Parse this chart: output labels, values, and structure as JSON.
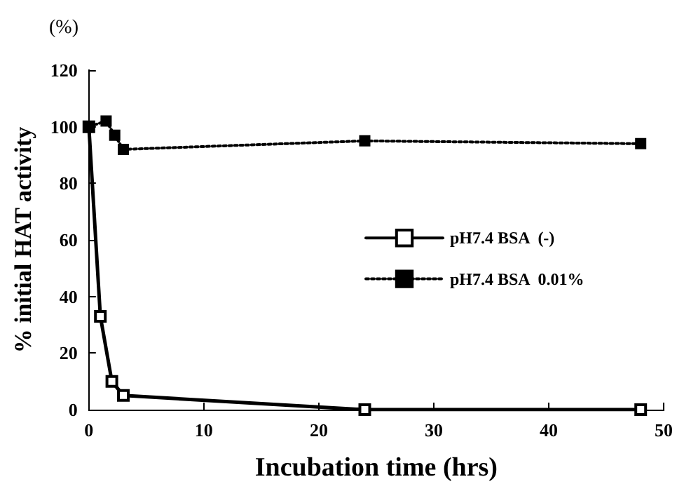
{
  "chart_data": {
    "type": "line",
    "xlabel": "Incubation time (hrs)",
    "ylabel": "% initial HAT activity",
    "annotations": [
      "(%)"
    ],
    "xlim": [
      0,
      50
    ],
    "xticks": [
      0,
      10,
      20,
      30,
      40,
      50
    ],
    "ylim": [
      0,
      120
    ],
    "yticks": [
      0,
      20,
      40,
      60,
      80,
      100,
      120
    ],
    "grid": false,
    "legend": "center",
    "marker": "square",
    "series": [
      {
        "name": "pH7.4 BSA  (-)",
        "color": "#000000",
        "line_style": "solid",
        "x": [
          0,
          1,
          2,
          3,
          24,
          48
        ],
        "values": [
          100,
          33,
          10,
          5,
          0,
          0
        ]
      },
      {
        "name": "pH7.4 BSA  0.01%",
        "color": "#000000",
        "line_style": "dotted",
        "x": [
          0,
          1.5,
          2.25,
          3,
          24,
          48
        ],
        "values": [
          100,
          102,
          97,
          92,
          95,
          94
        ]
      }
    ]
  }
}
